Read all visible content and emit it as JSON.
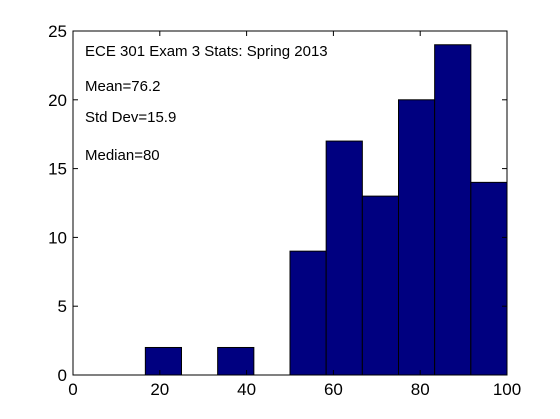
{
  "chart_data": {
    "type": "bar",
    "bin_edges": [
      0,
      8.33,
      16.67,
      25,
      33.33,
      41.67,
      50,
      58.33,
      66.67,
      75,
      83.33,
      91.67,
      100
    ],
    "values": [
      0,
      0,
      2,
      0,
      2,
      0,
      9,
      17,
      13,
      20,
      24,
      14
    ],
    "xlim": [
      0,
      100
    ],
    "ylim": [
      0,
      25
    ],
    "xticks": [
      0,
      20,
      40,
      60,
      80,
      100
    ],
    "yticks": [
      0,
      5,
      10,
      15,
      20,
      25
    ],
    "bar_color": "#000080",
    "title": "",
    "xlabel": "",
    "ylabel": "",
    "annotations": [
      "ECE 301 Exam 3 Stats:  Spring 2013",
      "Mean=76.2",
      "Std Dev=15.9",
      "Median=80"
    ]
  }
}
